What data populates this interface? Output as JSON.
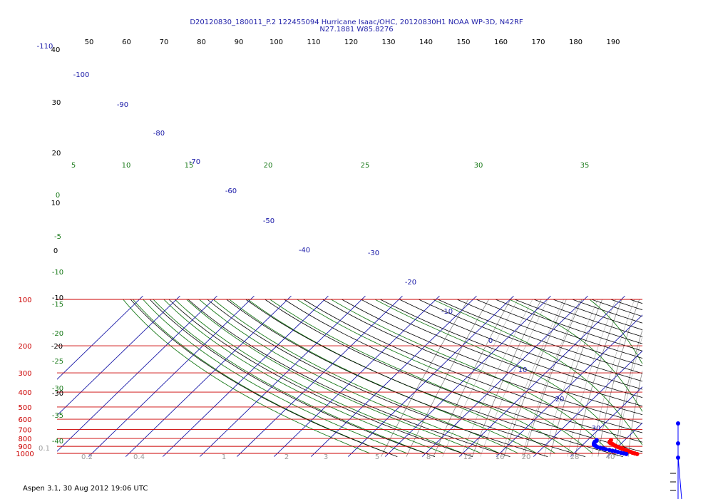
{
  "title_line1": "D20120830_180011_P.2 122455094 Hurricane Isaac/OHC, 20120830H1 NOAA WP-3D, N42RF",
  "title_line2": "N27.1881 W85.8276",
  "footer": "Aspen 3.1, 30 Aug 2012  19:06 UTC",
  "colors": {
    "isobar": "#cc0000",
    "isotherm": "#1a1aa8",
    "dry_adiabat": "#000000",
    "moist_adiabat": "#1a7a1a",
    "mixing_ratio": "#8a8a8a",
    "temperature": "#ff0000",
    "dewpoint": "#0000ff",
    "wind_barb": "#0000ff"
  },
  "chart_data": {
    "type": "line",
    "diagram": "skew-T log-P",
    "pressure_levels": [
      100,
      200,
      300,
      400,
      500,
      600,
      700,
      800,
      900,
      1000
    ],
    "pressure_labels": [
      "100",
      "200",
      "300",
      "400",
      "500",
      "600",
      "700",
      "800",
      "900",
      "1000"
    ],
    "top_labels": [
      "50",
      "60",
      "70",
      "80",
      "90",
      "100",
      "110",
      "120",
      "130",
      "140",
      "150",
      "160",
      "170",
      "180",
      "190"
    ],
    "isotherm_labels": [
      "-110",
      "-100",
      "-90",
      "-80",
      "-70",
      "-60",
      "-50",
      "-40",
      "-30",
      "-20",
      "-10",
      "0",
      "10",
      "20",
      "30"
    ],
    "left_labels": [
      "40",
      "30",
      "20",
      "10",
      "0",
      "-10",
      "-20",
      "-30"
    ],
    "moist_labels_200": [
      "5",
      "10",
      "15",
      "20",
      "25",
      "30",
      "35"
    ],
    "moist_labels_left": [
      "0",
      "-5",
      "-10",
      "-15",
      "-20",
      "-25",
      "-30",
      "-35",
      "-40"
    ],
    "bottom_labels": [
      "0.1",
      "0.2",
      "0.4",
      "1",
      "2",
      "3",
      "5",
      "8",
      "12",
      "16",
      "20",
      "28",
      "40"
    ],
    "series": [
      {
        "name": "temperature",
        "values": [
          {
            "p": 1010,
            "t": 27.2
          },
          {
            "p": 1000,
            "t": 26.4
          },
          {
            "p": 990,
            "t": 25.6
          },
          {
            "p": 980,
            "t": 25.0
          },
          {
            "p": 970,
            "t": 24.3
          },
          {
            "p": 960,
            "t": 23.6
          },
          {
            "p": 950,
            "t": 23.0
          },
          {
            "p": 940,
            "t": 22.3
          },
          {
            "p": 930,
            "t": 21.6
          },
          {
            "p": 920,
            "t": 20.9
          },
          {
            "p": 910,
            "t": 20.2
          },
          {
            "p": 900,
            "t": 19.5
          },
          {
            "p": 890,
            "t": 18.9
          },
          {
            "p": 880,
            "t": 18.3
          },
          {
            "p": 870,
            "t": 17.8
          },
          {
            "p": 860,
            "t": 17.1
          },
          {
            "p": 850,
            "t": 16.6
          },
          {
            "p": 840,
            "t": 16.4
          },
          {
            "p": 830,
            "t": 16.4
          },
          {
            "p": 820,
            "t": 16.3
          }
        ]
      },
      {
        "name": "dewpoint",
        "values": [
          {
            "p": 1010,
            "t": 24.3
          },
          {
            "p": 1000,
            "t": 23.4
          },
          {
            "p": 990,
            "t": 22.5
          },
          {
            "p": 980,
            "t": 21.5
          },
          {
            "p": 970,
            "t": 20.6
          },
          {
            "p": 960,
            "t": 19.6
          },
          {
            "p": 950,
            "t": 18.6
          },
          {
            "p": 940,
            "t": 17.4
          },
          {
            "p": 930,
            "t": 16.6
          },
          {
            "p": 920,
            "t": 15.6
          },
          {
            "p": 910,
            "t": 14.6
          },
          {
            "p": 900,
            "t": 14.0
          },
          {
            "p": 890,
            "t": 13.6
          },
          {
            "p": 880,
            "t": 13.0
          },
          {
            "p": 870,
            "t": 12.8
          },
          {
            "p": 860,
            "t": 12.6
          },
          {
            "p": 850,
            "t": 12.5
          },
          {
            "p": 840,
            "t": 12.4
          },
          {
            "p": 830,
            "t": 12.6
          },
          {
            "p": 820,
            "t": 12.4
          }
        ]
      }
    ],
    "wind_profile_points": 3
  }
}
